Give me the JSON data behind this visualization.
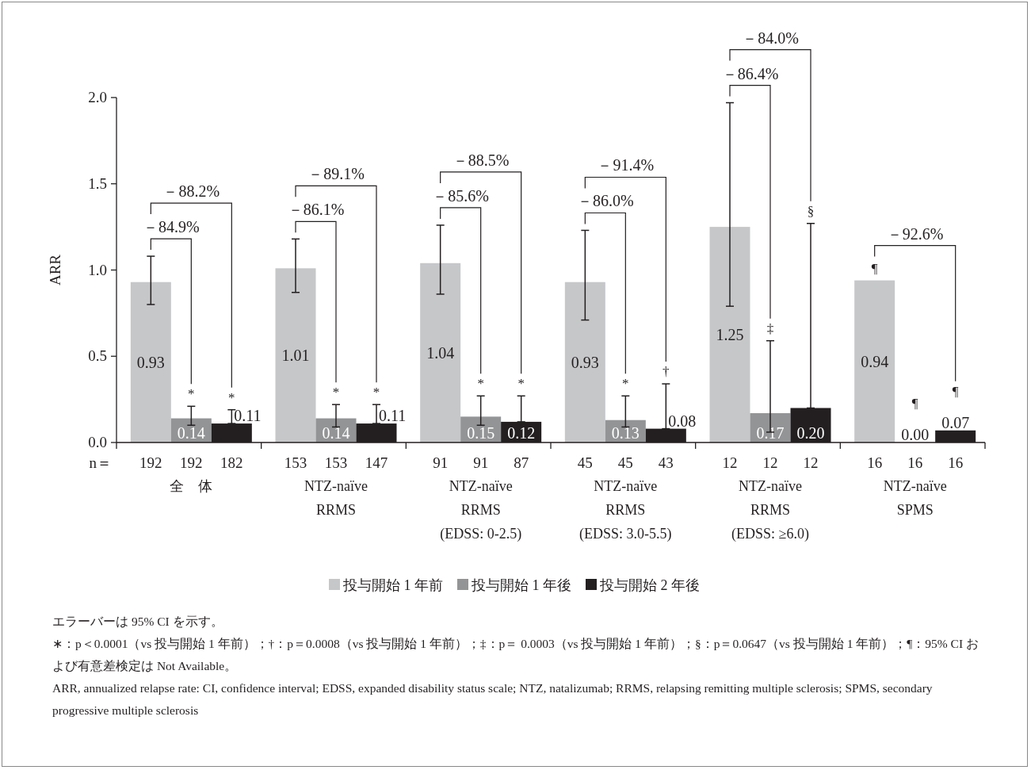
{
  "chart_data": {
    "type": "bar",
    "ylabel": "ARR",
    "categories": [
      "全　体",
      "NTZ-naïve\nRRMS",
      "NTZ-naïve\nRRMS\n(EDSS: 0-2.5)",
      "NTZ-naïve\nRRMS\n(EDSS: 3.0-5.5)",
      "NTZ-naïve\nRRMS\n(EDSS: ≥6.0)",
      "NTZ-naïve\nSPMS"
    ],
    "series": [
      {
        "name": "投与開始 1 年前",
        "color": "#c6c7c9",
        "values": [
          0.93,
          1.01,
          1.04,
          0.93,
          1.25,
          0.94
        ],
        "value_labels": [
          "0.93",
          "1.01",
          "1.04",
          "0.93",
          "1.25",
          "0.94"
        ],
        "errors": [
          [
            0.8,
            1.08
          ],
          [
            0.87,
            1.18
          ],
          [
            0.86,
            1.26
          ],
          [
            0.71,
            1.23
          ],
          [
            0.79,
            1.97
          ],
          null
        ]
      },
      {
        "name": "投与開始 1 年後",
        "color": "#939496",
        "values": [
          0.14,
          0.14,
          0.15,
          0.13,
          0.17,
          0.0
        ],
        "value_labels": [
          "0.14",
          "0.14",
          "0.15",
          "0.13",
          "0.17",
          "0.00"
        ],
        "errors": [
          [
            0.1,
            0.21
          ],
          [
            0.09,
            0.22
          ],
          [
            0.1,
            0.27
          ],
          [
            0.09,
            0.27
          ],
          [
            0.06,
            0.59
          ],
          null
        ]
      },
      {
        "name": "投与開始 2 年後",
        "color": "#231f20",
        "values": [
          0.11,
          0.11,
          0.12,
          0.08,
          0.2,
          0.07
        ],
        "value_labels": [
          "0.11",
          "0.11",
          "0.12",
          "0.08",
          "0.20",
          "0.07"
        ],
        "errors": [
          [
            0.11,
            0.19
          ],
          [
            0.11,
            0.22
          ],
          [
            0.12,
            0.27
          ],
          [
            0.08,
            0.34
          ],
          [
            0.2,
            1.27
          ],
          null
        ]
      }
    ],
    "ylim": [
      0,
      2.0
    ],
    "yticks": [
      {
        "value": 0,
        "label": "0.0"
      },
      0.5,
      {
        "value": 1,
        "label": "1.0"
      },
      1.5,
      {
        "value": 2,
        "label": "2.0"
      }
    ],
    "legend": "bottom",
    "annotations": [
      "n＝",
      "192",
      "192",
      "182",
      "153",
      "153",
      "147",
      "91",
      "91",
      "87",
      "45",
      "45",
      "43",
      "12",
      "12",
      "12",
      "16",
      "16",
      "16",
      "－84.9%",
      "－88.2%",
      "－86.1%",
      "－89.1%",
      "－85.6%",
      "－88.5%",
      "－86.0%",
      "－91.4%",
      "－86.4%",
      "－84.0%",
      "－92.6%",
      "*",
      "*",
      "*",
      "*",
      "*",
      "*",
      "*",
      "†",
      "‡",
      "§",
      "¶",
      "¶",
      "¶",
      "エラーバーは 95% CI を示す。",
      "∗：p＜0.0001（vs 投与開始 1 年前）；†：p＝0.0008（vs 投与開始 1 年前）；‡：p＝ 0.0003（vs 投与開始 1 年前）；§：p＝0.0647（vs 投与開始 1 年前）；¶：95% CI および有意差検定は Not Available。",
      "ARR, annualized relapse rate: CI, confidence interval; EDSS, expanded disability status scale; NTZ, natalizumab; RRMS, relapsing remitting multiple sclerosis; SPMS, secondary progressive multiple sclerosis"
    ]
  }
}
